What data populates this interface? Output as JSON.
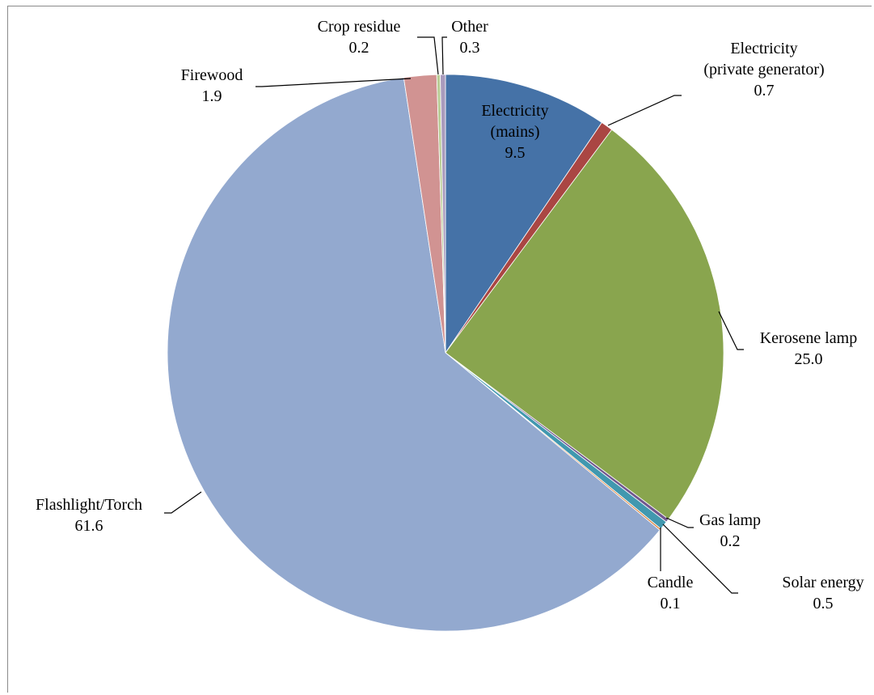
{
  "chart_data": {
    "type": "pie",
    "title": "",
    "slices": [
      {
        "name": "Electricity (mains)",
        "label_lines": [
          "Electricity",
          "(mains)",
          "9.5"
        ],
        "value": 9.5,
        "color": "#4572A7"
      },
      {
        "name": "Electricity (private generator)",
        "label_lines": [
          "Electricity",
          "(private generator)",
          "0.7"
        ],
        "value": 0.7,
        "color": "#AA4643"
      },
      {
        "name": "Kerosene lamp",
        "label_lines": [
          "Kerosene lamp",
          "25.0"
        ],
        "value": 25.0,
        "color": "#89A54E"
      },
      {
        "name": "Gas lamp",
        "label_lines": [
          "Gas lamp",
          "0.2"
        ],
        "value": 0.2,
        "color": "#71588F"
      },
      {
        "name": "Solar energy",
        "label_lines": [
          "Solar energy",
          "0.5"
        ],
        "value": 0.5,
        "color": "#4198AF"
      },
      {
        "name": "Candle",
        "label_lines": [
          "Candle",
          "0.1"
        ],
        "value": 0.1,
        "color": "#DB843D"
      },
      {
        "name": "Flashlight/Torch",
        "label_lines": [
          "Flashlight/Torch",
          "61.6"
        ],
        "value": 61.6,
        "color": "#93A9CF"
      },
      {
        "name": "Firewood",
        "label_lines": [
          "Firewood",
          "1.9"
        ],
        "value": 1.9,
        "color": "#D19392"
      },
      {
        "name": "Crop residue",
        "label_lines": [
          "Crop residue",
          "0.2"
        ],
        "value": 0.2,
        "color": "#B9CD96"
      },
      {
        "name": "Other",
        "label_lines": [
          "Other",
          "0.3"
        ],
        "value": 0.3,
        "color": "#A99BBD"
      }
    ]
  }
}
